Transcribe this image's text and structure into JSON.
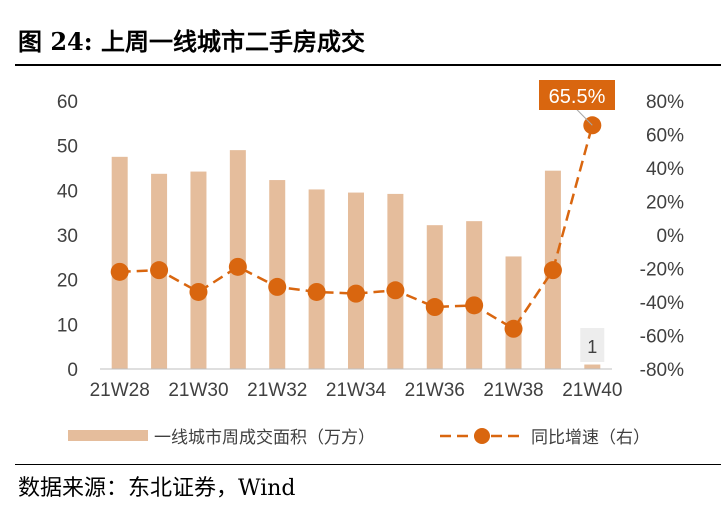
{
  "figure_title": "图 24:  上周一线城市二手房成交",
  "source_text": "数据来源：东北证券，Wind",
  "colors": {
    "bar": "#e5bd9c",
    "line": "#d9660f",
    "callout_bg": "#d9660f",
    "label_box": "#ededed"
  },
  "chart_data": {
    "type": "bar+line",
    "categories": [
      "21W28",
      "21W29",
      "21W30",
      "21W31",
      "21W32",
      "21W33",
      "21W34",
      "21W35",
      "21W36",
      "21W37",
      "21W38",
      "21W39",
      "21W40"
    ],
    "x_tick_labels": [
      "21W28",
      "21W30",
      "21W32",
      "21W34",
      "21W36",
      "21W38",
      "21W40"
    ],
    "series": [
      {
        "name": "一线城市周成交面积（万方）",
        "type": "bar",
        "axis": "left",
        "values": [
          47.5,
          43.7,
          44.2,
          49.0,
          42.3,
          40.2,
          39.5,
          39.2,
          32.2,
          33.1,
          25.2,
          44.4,
          1
        ]
      },
      {
        "name": "同比增速（右）",
        "type": "line",
        "axis": "right",
        "unit": "%",
        "values": [
          -22,
          -21,
          -34,
          -19,
          -31,
          -34,
          -35,
          -33,
          -43,
          -42,
          -56,
          -21,
          65.5
        ]
      }
    ],
    "y_left": {
      "min": 0,
      "max": 60,
      "ticks": [
        0,
        10,
        20,
        30,
        40,
        50,
        60
      ],
      "tick_labels": [
        "0",
        "10",
        "20",
        "30",
        "40",
        "50",
        "60"
      ]
    },
    "y_right": {
      "min": -80,
      "max": 80,
      "ticks": [
        -80,
        -60,
        -40,
        -20,
        0,
        20,
        40,
        60,
        80
      ],
      "tick_labels": [
        "-80%",
        "-60%",
        "-40%",
        "-20%",
        "0%",
        "20%",
        "40%",
        "60%",
        "80%"
      ]
    },
    "annotations": [
      {
        "series": "同比增速（右）",
        "category": "21W40",
        "text": "65.5%"
      },
      {
        "series": "一线城市周成交面积（万方）",
        "category": "21W40",
        "text": "1"
      }
    ],
    "grid": false,
    "legend_position": "bottom"
  }
}
